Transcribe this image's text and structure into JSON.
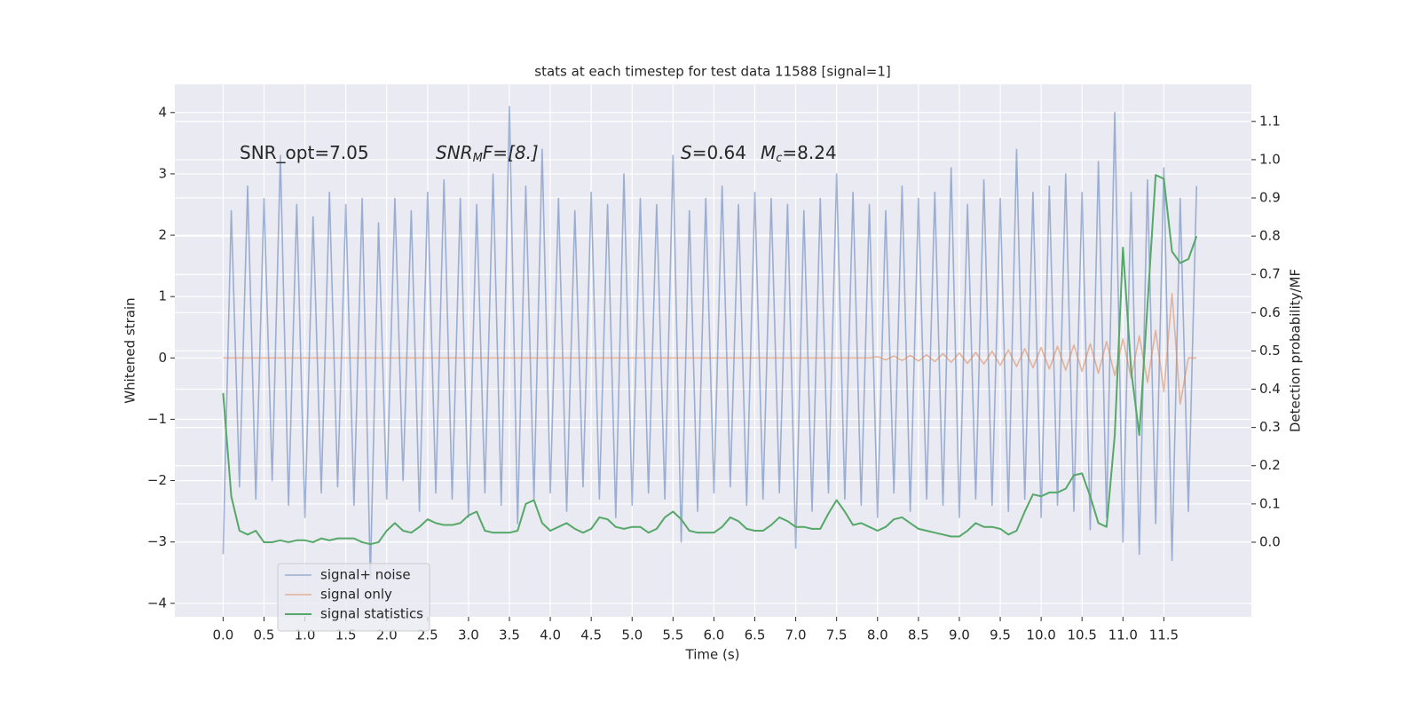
{
  "chart_data": {
    "type": "line",
    "title": "stats at each timestep for test data 11588 [signal=1]",
    "xlabel": "Time (s)",
    "ylabel": "Whitened strain",
    "y2label": "Detection probability/MF",
    "annotations": [
      [
        "SNR_opt=7.05"
      ],
      [
        "SNR",
        "M",
        "F=[8.]"
      ],
      [
        "S",
        "=0.64",
        "M",
        "c",
        "=8.24"
      ]
    ],
    "grid": true,
    "legend": "lower left",
    "xlim": [
      -0.59,
      12.57
    ],
    "ylim": [
      -4.22,
      4.46
    ],
    "y2lim": [
      -0.195,
      1.197
    ],
    "xticks": [
      {
        "value": 0,
        "label": "0.0"
      },
      0.5,
      {
        "value": 1,
        "label": "1.0"
      },
      1.5,
      {
        "value": 2,
        "label": "2.0"
      },
      2.5,
      {
        "value": 3,
        "label": "3.0"
      },
      3.5,
      {
        "value": 4,
        "label": "4.0"
      },
      4.5,
      {
        "value": 5,
        "label": "5.0"
      },
      5.5,
      {
        "value": 6,
        "label": "6.0"
      },
      6.5,
      {
        "value": 7,
        "label": "7.0"
      },
      7.5,
      {
        "value": 8,
        "label": "8.0"
      },
      8.5,
      {
        "value": 9,
        "label": "9.0"
      },
      9.5,
      {
        "value": 10,
        "label": "10.0"
      },
      10.5,
      {
        "value": 11,
        "label": "11.0"
      },
      11.5
    ],
    "yticks": [
      {
        "value": -4,
        "label": "−4"
      },
      {
        "value": -3,
        "label": "−3"
      },
      {
        "value": -2,
        "label": "−2"
      },
      {
        "value": -1,
        "label": "−1"
      },
      0,
      1,
      2,
      3,
      4
    ],
    "y2ticks": [
      {
        "value": 0,
        "label": "0.0"
      },
      0.1,
      0.2,
      0.3,
      0.4,
      0.5,
      0.6,
      0.7,
      0.8,
      0.9,
      {
        "value": 1,
        "label": "1.0"
      },
      1.1
    ],
    "x": [
      0,
      0.1,
      0.2,
      0.3,
      0.4,
      0.5,
      0.6,
      0.7,
      0.8,
      0.9,
      1,
      1.1,
      1.2,
      1.3,
      1.4,
      1.5,
      1.6,
      1.7,
      1.8,
      1.9,
      2,
      2.1,
      2.2,
      2.3,
      2.4,
      2.5,
      2.6,
      2.7,
      2.8,
      2.9,
      3,
      3.1,
      3.2,
      3.3,
      3.4,
      3.5,
      3.6,
      3.7,
      3.8,
      3.9,
      4,
      4.1,
      4.2,
      4.3,
      4.4,
      4.5,
      4.6,
      4.7,
      4.8,
      4.9,
      5,
      5.1,
      5.2,
      5.3,
      5.4,
      5.5,
      5.6,
      5.7,
      5.8,
      5.9,
      6,
      6.1,
      6.2,
      6.3,
      6.4,
      6.5,
      6.6,
      6.7,
      6.8,
      6.9,
      7,
      7.1,
      7.2,
      7.3,
      7.4,
      7.5,
      7.6,
      7.7,
      7.8,
      7.9,
      8,
      8.1,
      8.2,
      8.3,
      8.4,
      8.5,
      8.6,
      8.7,
      8.8,
      8.9,
      9,
      9.1,
      9.2,
      9.3,
      9.4,
      9.5,
      9.6,
      9.7,
      9.8,
      9.9,
      10,
      10.1,
      10.2,
      10.3,
      10.4,
      10.5,
      10.6,
      10.7,
      10.8,
      10.9,
      11,
      11.1,
      11.2,
      11.3,
      11.4,
      11.5,
      11.6,
      11.7,
      11.8,
      11.9
    ],
    "series": [
      {
        "name": "signal+ noise",
        "color": "#4c72b0",
        "values": [
          -3.2,
          2.4,
          -2.1,
          2.8,
          -2.3,
          2.6,
          -2.0,
          3.3,
          -2.4,
          2.5,
          -2.6,
          2.3,
          -2.2,
          2.7,
          -2.1,
          2.5,
          -2.4,
          2.6,
          -3.6,
          2.2,
          -2.3,
          2.6,
          -2.0,
          2.4,
          -2.5,
          2.7,
          -2.2,
          2.9,
          -2.3,
          2.6,
          -2.6,
          2.5,
          -2.2,
          3.0,
          -2.4,
          4.1,
          -2.7,
          2.8,
          -2.3,
          3.4,
          -2.2,
          2.6,
          -2.5,
          2.4,
          -2.1,
          2.7,
          -2.3,
          2.5,
          -2.6,
          3.0,
          -2.4,
          2.6,
          -2.2,
          2.5,
          -2.3,
          3.3,
          -3.0,
          2.4,
          -2.5,
          2.6,
          -2.2,
          2.8,
          -2.1,
          2.5,
          -2.4,
          2.7,
          -2.3,
          2.6,
          -2.2,
          2.5,
          -3.1,
          2.4,
          -2.5,
          2.6,
          -2.2,
          3.0,
          -2.3,
          2.7,
          -2.4,
          2.5,
          -2.6,
          2.4,
          -2.2,
          2.8,
          -2.5,
          2.6,
          -2.3,
          2.7,
          -2.4,
          3.1,
          -2.6,
          2.5,
          -2.3,
          2.9,
          -2.4,
          2.6,
          -2.5,
          3.4,
          -2.3,
          2.7,
          -2.6,
          2.8,
          -2.4,
          3.0,
          -2.5,
          2.7,
          -2.8,
          3.2,
          -2.6,
          4.0,
          -3.0,
          2.7,
          -3.2,
          2.9,
          -2.7,
          3.1,
          -3.3,
          2.6,
          -2.5,
          2.8
        ]
      },
      {
        "name": "signal only",
        "color": "#dd8452",
        "values": [
          0,
          0,
          0,
          0,
          0,
          0,
          0,
          0,
          0,
          0,
          0,
          0,
          0,
          0,
          0,
          0,
          0,
          0,
          0,
          0,
          0,
          0,
          0,
          0,
          0,
          0,
          0,
          0,
          0,
          0,
          0,
          0,
          0,
          0,
          0,
          0,
          0,
          0,
          0,
          0,
          0,
          0,
          0,
          0,
          0,
          0,
          0,
          0,
          0,
          0,
          0,
          0,
          0,
          0,
          0,
          0,
          0,
          0,
          0,
          0,
          0,
          0,
          0,
          0,
          0,
          0,
          0,
          0,
          0,
          0,
          0,
          0,
          0,
          0,
          0,
          0,
          0,
          0,
          0,
          0,
          0.02,
          -0.03,
          0.03,
          -0.04,
          0.04,
          -0.05,
          0.05,
          -0.06,
          0.07,
          -0.07,
          0.08,
          -0.09,
          0.09,
          -0.1,
          0.11,
          -0.12,
          0.13,
          -0.14,
          0.15,
          -0.16,
          0.17,
          -0.18,
          0.19,
          -0.2,
          0.21,
          -0.22,
          0.23,
          -0.25,
          0.27,
          -0.29,
          0.31,
          -0.33,
          0.36,
          -0.4,
          0.45,
          -0.55,
          1.05,
          -0.75,
          0,
          0
        ]
      },
      {
        "name": "signal statistics",
        "color": "#55a868",
        "axis": "y2",
        "values": [
          0.39,
          0.12,
          0.03,
          0.02,
          0.03,
          0,
          0,
          0.005,
          0,
          0.005,
          0.005,
          0,
          0.01,
          0.005,
          0.01,
          0.01,
          0.01,
          0,
          -0.005,
          0,
          0.03,
          0.05,
          0.03,
          0.025,
          0.04,
          0.06,
          0.05,
          0.045,
          0.045,
          0.05,
          0.07,
          0.08,
          0.03,
          0.025,
          0.025,
          0.025,
          0.03,
          0.1,
          0.11,
          0.05,
          0.03,
          0.04,
          0.05,
          0.035,
          0.025,
          0.035,
          0.065,
          0.06,
          0.04,
          0.035,
          0.04,
          0.04,
          0.025,
          0.035,
          0.065,
          0.08,
          0.06,
          0.03,
          0.025,
          0.025,
          0.025,
          0.04,
          0.065,
          0.055,
          0.035,
          0.03,
          0.03,
          0.045,
          0.065,
          0.055,
          0.04,
          0.04,
          0.035,
          0.035,
          0.075,
          0.11,
          0.08,
          0.045,
          0.05,
          0.04,
          0.03,
          0.04,
          0.06,
          0.065,
          0.05,
          0.035,
          0.03,
          0.025,
          0.02,
          0.015,
          0.015,
          0.03,
          0.05,
          0.04,
          0.04,
          0.035,
          0.02,
          0.03,
          0.08,
          0.125,
          0.12,
          0.13,
          0.13,
          0.14,
          0.175,
          0.18,
          0.12,
          0.05,
          0.04,
          0.28,
          0.77,
          0.45,
          0.28,
          0.62,
          0.96,
          0.95,
          0.76,
          0.73,
          0.74,
          0.8
        ]
      }
    ]
  }
}
